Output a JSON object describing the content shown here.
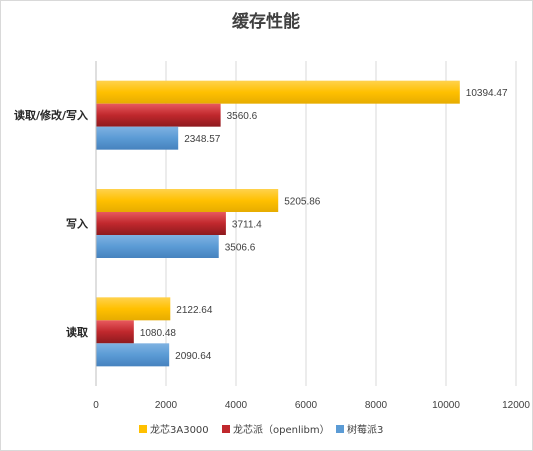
{
  "chart_data": {
    "type": "bar",
    "orientation": "horizontal",
    "title": "缓存性能",
    "categories": [
      "读取/修改/写入",
      "写入",
      "读取"
    ],
    "series": [
      {
        "name": "龙芯3A3000",
        "values": [
          10394.47,
          5205.86,
          2122.64
        ],
        "labels": [
          "10394.47",
          "5205.86",
          "2122.64"
        ],
        "color": "#FFC000"
      },
      {
        "name": "龙芯派（openlibm）",
        "values": [
          3560.6,
          3711.4,
          1080.48
        ],
        "labels": [
          "3560.6",
          "3711.4",
          "1080.48"
        ],
        "color": "#C0282D"
      },
      {
        "name": "树莓派3",
        "values": [
          2348.57,
          3506.6,
          2090.64
        ],
        "labels": [
          "2348.57",
          "3506.6",
          "2090.64"
        ],
        "color": "#5B9BD5"
      }
    ],
    "xlim": [
      0,
      12000
    ],
    "xticks": [
      0,
      2000,
      4000,
      6000,
      8000,
      10000,
      12000
    ],
    "xtick_labels": [
      "0",
      "2000",
      "4000",
      "6000",
      "8000",
      "10000",
      "12000"
    ],
    "grid": true,
    "legend": "bottom"
  }
}
